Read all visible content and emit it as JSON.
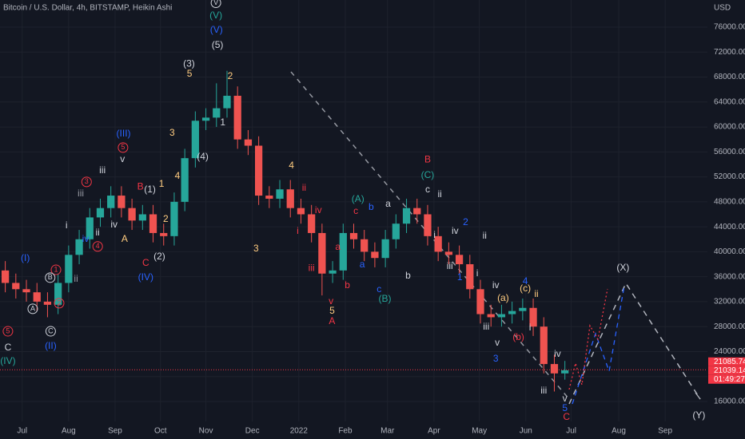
{
  "chart_data": {
    "type": "candlestick",
    "title": "Bitcoin / U.S. Dollar, 4h, BITSTAMP, Heikin Ashi",
    "currency": "USD",
    "up_color": "#26a69a",
    "down_color": "#ef5350",
    "xlim": [
      0,
      67
    ],
    "ylim": [
      12800,
      80350
    ],
    "xticks": [
      {
        "value": 2.1,
        "label": "Jul"
      },
      {
        "value": 6.5,
        "label": "Aug"
      },
      {
        "value": 10.9,
        "label": "Sep"
      },
      {
        "value": 15.2,
        "label": "Oct"
      },
      {
        "value": 19.5,
        "label": "Nov"
      },
      {
        "value": 23.9,
        "label": "Dec"
      },
      {
        "value": 28.3,
        "label": "2022"
      },
      {
        "value": 32.7,
        "label": "Feb"
      },
      {
        "value": 36.7,
        "label": "Mar"
      },
      {
        "value": 41.1,
        "label": "Apr"
      },
      {
        "value": 45.4,
        "label": "May"
      },
      {
        "value": 49.8,
        "label": "Jun"
      },
      {
        "value": 54.1,
        "label": "Jul"
      },
      {
        "value": 58.6,
        "label": "Aug"
      },
      {
        "value": 63.0,
        "label": "Sep"
      }
    ],
    "yticks": [
      {
        "value": 16000,
        "label": "16000.00"
      },
      {
        "value": 20000,
        "label": "20000.00"
      },
      {
        "value": 24000,
        "label": "24000.00"
      },
      {
        "value": 28000,
        "label": "28000.00"
      },
      {
        "value": 32000,
        "label": "32000.00"
      },
      {
        "value": 36000,
        "label": "36000.00"
      },
      {
        "value": 40000,
        "label": "40000.00"
      },
      {
        "value": 44000,
        "label": "44000.00"
      },
      {
        "value": 48000,
        "label": "48000.00"
      },
      {
        "value": 52000,
        "label": "52000.00"
      },
      {
        "value": 56000,
        "label": "56000.00"
      },
      {
        "value": 60000,
        "label": "60000.00"
      },
      {
        "value": 64000,
        "label": "64000.00"
      },
      {
        "value": 68000,
        "label": "68000.00"
      },
      {
        "value": 72000,
        "label": "72000.00"
      },
      {
        "value": 76000,
        "label": "76000.00"
      }
    ],
    "x": [
      0.5,
      1.5,
      2.5,
      3.5,
      4.5,
      5.5,
      6.5,
      7.5,
      8.5,
      9.5,
      10.5,
      11.5,
      12.5,
      13.5,
      14.5,
      15.5,
      16.5,
      17.5,
      18.5,
      19.5,
      20.5,
      21.5,
      22.5,
      23.5,
      24.5,
      25.5,
      26.5,
      27.5,
      28.5,
      29.5,
      30.5,
      31.5,
      32.5,
      33.5,
      34.5,
      35.5,
      36.5,
      37.5,
      38.5,
      39.5,
      40.5,
      41.5,
      42.5,
      43.5,
      44.5,
      45.5,
      46.5,
      47.5,
      48.5,
      49.5,
      50.5,
      51.5,
      52.5,
      53.5
    ],
    "open": [
      37000,
      35000,
      34000,
      33500,
      32000,
      31500,
      35000,
      39500,
      42000,
      45500,
      47000,
      49000,
      47000,
      45000,
      46000,
      43000,
      42500,
      48000,
      55000,
      61000,
      61500,
      63000,
      65000,
      58000,
      57000,
      49000,
      48500,
      50000,
      47000,
      46000,
      43000,
      36500,
      37000,
      43000,
      42000,
      40000,
      39000,
      42000,
      44500,
      47000,
      46000,
      42500,
      40000,
      39500,
      38000,
      34000,
      30000,
      29500,
      30000,
      30500,
      31000,
      28000,
      22000,
      20500
    ],
    "high": [
      38500,
      36500,
      35500,
      35000,
      33500,
      36500,
      41000,
      43500,
      47000,
      48500,
      50500,
      50500,
      48500,
      47500,
      47500,
      44500,
      49500,
      56500,
      62500,
      63000,
      67000,
      69000,
      66500,
      59500,
      58500,
      50500,
      51500,
      51500,
      48500,
      47500,
      44500,
      38500,
      44500,
      44500,
      43500,
      41500,
      43500,
      46000,
      48500,
      48500,
      47500,
      44000,
      41500,
      41000,
      39500,
      35500,
      31500,
      31500,
      32000,
      32500,
      32500,
      29500,
      23500,
      22500
    ],
    "low": [
      33500,
      32500,
      32000,
      30500,
      29500,
      30000,
      33500,
      38000,
      40500,
      44000,
      45500,
      45500,
      43500,
      43500,
      41500,
      41000,
      41000,
      46500,
      53500,
      59500,
      60000,
      61500,
      56500,
      55500,
      47500,
      47000,
      47000,
      45500,
      44500,
      41500,
      33000,
      35000,
      35500,
      40500,
      38500,
      37500,
      37500,
      40500,
      43000,
      44500,
      41000,
      38500,
      38000,
      36500,
      32500,
      28500,
      28000,
      28000,
      28500,
      29000,
      26500,
      20500,
      17600,
      19500
    ],
    "close": [
      35000,
      34000,
      33500,
      32000,
      31500,
      35000,
      39500,
      42000,
      45500,
      47000,
      49000,
      47000,
      45000,
      46000,
      43000,
      42500,
      48000,
      55000,
      61000,
      61500,
      63000,
      65000,
      58000,
      57000,
      49000,
      48500,
      50000,
      47000,
      46000,
      43000,
      36500,
      37000,
      43000,
      42000,
      40000,
      39000,
      42000,
      44500,
      47000,
      46000,
      42500,
      40000,
      39500,
      38000,
      34000,
      30000,
      29500,
      30000,
      30500,
      31000,
      28000,
      22000,
      20500,
      21000
    ],
    "last_price": 21085.74,
    "price_labels": [
      {
        "value": 21085.74,
        "label": "21085.74"
      },
      {
        "label": "21039.14"
      },
      {
        "label": "01:49:27"
      }
    ],
    "annotations": [
      {
        "text": "V",
        "x": 20.45,
        "y": 79900,
        "color": "#d1d4dc",
        "circled": true
      },
      {
        "text": "(V)",
        "x": 20.45,
        "y": 77800,
        "color": "#26a69a"
      },
      {
        "text": "(V)",
        "x": 20.5,
        "y": 75500,
        "color": "#2962ff"
      },
      {
        "text": "(5)",
        "x": 20.6,
        "y": 73100,
        "color": "#d1d4dc"
      },
      {
        "text": "(3)",
        "x": 17.9,
        "y": 70100,
        "color": "#d1d4dc"
      },
      {
        "text": "5",
        "x": 17.95,
        "y": 68450,
        "color": "#ffcc80"
      },
      {
        "text": "2",
        "x": 21.8,
        "y": 68100,
        "color": "#ffcc80"
      },
      {
        "text": "1",
        "x": 21.1,
        "y": 60650,
        "color": "#d1d4dc"
      },
      {
        "text": "(4)",
        "x": 19.2,
        "y": 55150,
        "color": "#d1d4dc"
      },
      {
        "text": "3",
        "x": 16.3,
        "y": 59000,
        "color": "#ffcc80"
      },
      {
        "text": "4",
        "x": 16.8,
        "y": 52100,
        "color": "#ffcc80"
      },
      {
        "text": "1",
        "x": 15.3,
        "y": 50800,
        "color": "#ffcc80"
      },
      {
        "text": "2",
        "x": 15.7,
        "y": 45200,
        "color": "#ffcc80"
      },
      {
        "text": "(III)",
        "x": 11.7,
        "y": 58850,
        "color": "#2962ff"
      },
      {
        "text": "5",
        "x": 11.65,
        "y": 56700,
        "color": "#f23645",
        "circled": true
      },
      {
        "text": "v",
        "x": 11.6,
        "y": 54800,
        "color": "#d1d4dc"
      },
      {
        "text": "iii",
        "x": 9.7,
        "y": 53000,
        "color": "#d1d4dc"
      },
      {
        "text": "3",
        "x": 8.2,
        "y": 51200,
        "color": "#f23645",
        "circled": true
      },
      {
        "text": "iii",
        "x": 7.65,
        "y": 49300,
        "color": "#9598a1"
      },
      {
        "text": "B",
        "x": 13.3,
        "y": 50400,
        "color": "#f23645"
      },
      {
        "text": "(1)",
        "x": 14.2,
        "y": 49900,
        "color": "#d1d4dc"
      },
      {
        "text": "i",
        "x": 6.3,
        "y": 44150,
        "color": "#d1d4dc"
      },
      {
        "text": "iv",
        "x": 10.8,
        "y": 44300,
        "color": "#d1d4dc"
      },
      {
        "text": "ii",
        "x": 9.25,
        "y": 43000,
        "color": "#d1d4dc"
      },
      {
        "text": "iv",
        "x": 8.1,
        "y": 42000,
        "color": "#2962ff"
      },
      {
        "text": "A",
        "x": 11.8,
        "y": 42000,
        "color": "#ffcc80"
      },
      {
        "text": "4",
        "x": 9.25,
        "y": 40850,
        "color": "#f23645",
        "circled": true
      },
      {
        "text": "(2)",
        "x": 15.1,
        "y": 39150,
        "color": "#d1d4dc"
      },
      {
        "text": "C",
        "x": 13.8,
        "y": 38150,
        "color": "#f23645"
      },
      {
        "text": "(IV)",
        "x": 13.8,
        "y": 35850,
        "color": "#2962ff"
      },
      {
        "text": "(I)",
        "x": 2.4,
        "y": 38900,
        "color": "#2962ff"
      },
      {
        "text": "1",
        "x": 5.3,
        "y": 37100,
        "color": "#f23645",
        "circled": true
      },
      {
        "text": "ii",
        "x": 7.2,
        "y": 35600,
        "color": "#9598a1"
      },
      {
        "text": "B",
        "x": 4.75,
        "y": 35850,
        "color": "#d1d4dc",
        "circled": true
      },
      {
        "text": "2",
        "x": 5.6,
        "y": 31750,
        "color": "#f23645",
        "circled": true
      },
      {
        "text": "A",
        "x": 3.1,
        "y": 30850,
        "color": "#d1d4dc",
        "circled": true
      },
      {
        "text": "5",
        "x": 0.75,
        "y": 27250,
        "color": "#f23645",
        "circled": true
      },
      {
        "text": "C",
        "x": 4.8,
        "y": 27250,
        "color": "#d1d4dc",
        "circled": true
      },
      {
        "text": "(II)",
        "x": 4.8,
        "y": 24850,
        "color": "#2962ff"
      },
      {
        "text": "C",
        "x": 0.75,
        "y": 24600,
        "color": "#d1d4dc"
      },
      {
        "text": "(IV)",
        "x": 0.75,
        "y": 22400,
        "color": "#26a69a"
      },
      {
        "text": "3",
        "x": 24.25,
        "y": 40450,
        "color": "#ffcc80"
      },
      {
        "text": "4",
        "x": 27.6,
        "y": 53750,
        "color": "#ffcc80"
      },
      {
        "text": "ii",
        "x": 28.8,
        "y": 50150,
        "color": "#f23645"
      },
      {
        "text": "iv",
        "x": 30.15,
        "y": 46600,
        "color": "#f23645"
      },
      {
        "text": "i",
        "x": 28.2,
        "y": 43250,
        "color": "#f23645"
      },
      {
        "text": "iii",
        "x": 29.5,
        "y": 37350,
        "color": "#f23645"
      },
      {
        "text": "a",
        "x": 32.0,
        "y": 40700,
        "color": "#f23645"
      },
      {
        "text": "v",
        "x": 31.35,
        "y": 32000,
        "color": "#f23645"
      },
      {
        "text": "5",
        "x": 31.45,
        "y": 30450,
        "color": "#ffcc80"
      },
      {
        "text": "A",
        "x": 31.45,
        "y": 28800,
        "color": "#f23645"
      },
      {
        "text": "b",
        "x": 32.9,
        "y": 34550,
        "color": "#f23645"
      },
      {
        "text": "(A)",
        "x": 33.9,
        "y": 48400,
        "color": "#26a69a"
      },
      {
        "text": "c",
        "x": 33.7,
        "y": 46450,
        "color": "#f23645"
      },
      {
        "text": "b",
        "x": 35.15,
        "y": 47100,
        "color": "#2962ff"
      },
      {
        "text": "a",
        "x": 34.3,
        "y": 37900,
        "color": "#2962ff"
      },
      {
        "text": "a",
        "x": 36.75,
        "y": 47600,
        "color": "#d1d4dc"
      },
      {
        "text": "c",
        "x": 35.9,
        "y": 33900,
        "color": "#2962ff"
      },
      {
        "text": "(B)",
        "x": 36.45,
        "y": 32400,
        "color": "#26a69a"
      },
      {
        "text": "b",
        "x": 38.65,
        "y": 36100,
        "color": "#d1d4dc"
      },
      {
        "text": "B",
        "x": 40.5,
        "y": 54750,
        "color": "#f23645"
      },
      {
        "text": "(C)",
        "x": 40.5,
        "y": 52200,
        "color": "#26a69a"
      },
      {
        "text": "c",
        "x": 40.5,
        "y": 49900,
        "color": "#d1d4dc"
      },
      {
        "text": "ii",
        "x": 41.65,
        "y": 49150,
        "color": "#d1d4dc"
      },
      {
        "text": "i",
        "x": 41.15,
        "y": 42600,
        "color": "#d1d4dc"
      },
      {
        "text": "iv",
        "x": 43.1,
        "y": 43250,
        "color": "#d1d4dc"
      },
      {
        "text": "2",
        "x": 44.1,
        "y": 44650,
        "color": "#2962ff"
      },
      {
        "text": "ii",
        "x": 45.9,
        "y": 42500,
        "color": "#d1d4dc"
      },
      {
        "text": "iii",
        "x": 42.6,
        "y": 37650,
        "color": "#d1d4dc"
      },
      {
        "text": "1",
        "x": 43.55,
        "y": 35850,
        "color": "#2962ff"
      },
      {
        "text": "i",
        "x": 45.2,
        "y": 36500,
        "color": "#d1d4dc"
      },
      {
        "text": "iv",
        "x": 46.95,
        "y": 34550,
        "color": "#d1d4dc"
      },
      {
        "text": "(a)",
        "x": 47.65,
        "y": 32500,
        "color": "#ffcc80"
      },
      {
        "text": "4",
        "x": 49.75,
        "y": 35200,
        "color": "#2962ff"
      },
      {
        "text": "(c)",
        "x": 49.75,
        "y": 34050,
        "color": "#ffcc80"
      },
      {
        "text": "ii",
        "x": 50.8,
        "y": 33150,
        "color": "#ffcc80"
      },
      {
        "text": "iii",
        "x": 46.05,
        "y": 27900,
        "color": "#d1d4dc"
      },
      {
        "text": "i",
        "x": 50.2,
        "y": 27800,
        "color": "#d1d4dc"
      },
      {
        "text": "(b)",
        "x": 49.1,
        "y": 26250,
        "color": "#f23645"
      },
      {
        "text": "v",
        "x": 47.1,
        "y": 25350,
        "color": "#d1d4dc"
      },
      {
        "text": "3",
        "x": 46.95,
        "y": 22800,
        "color": "#2962ff"
      },
      {
        "text": "iv",
        "x": 52.8,
        "y": 23550,
        "color": "#d1d4dc"
      },
      {
        "text": "iii",
        "x": 51.5,
        "y": 17700,
        "color": "#d1d4dc"
      },
      {
        "text": "v",
        "x": 53.5,
        "y": 16400,
        "color": "#d1d4dc"
      },
      {
        "text": "5",
        "x": 53.5,
        "y": 14850,
        "color": "#2962ff"
      },
      {
        "text": "C",
        "x": 53.65,
        "y": 13450,
        "color": "#f23645"
      },
      {
        "text": "(X)",
        "x": 59.0,
        "y": 37400,
        "color": "#d1d4dc"
      },
      {
        "text": "(Y)",
        "x": 66.2,
        "y": 13700,
        "color": "#d1d4dc"
      }
    ]
  }
}
